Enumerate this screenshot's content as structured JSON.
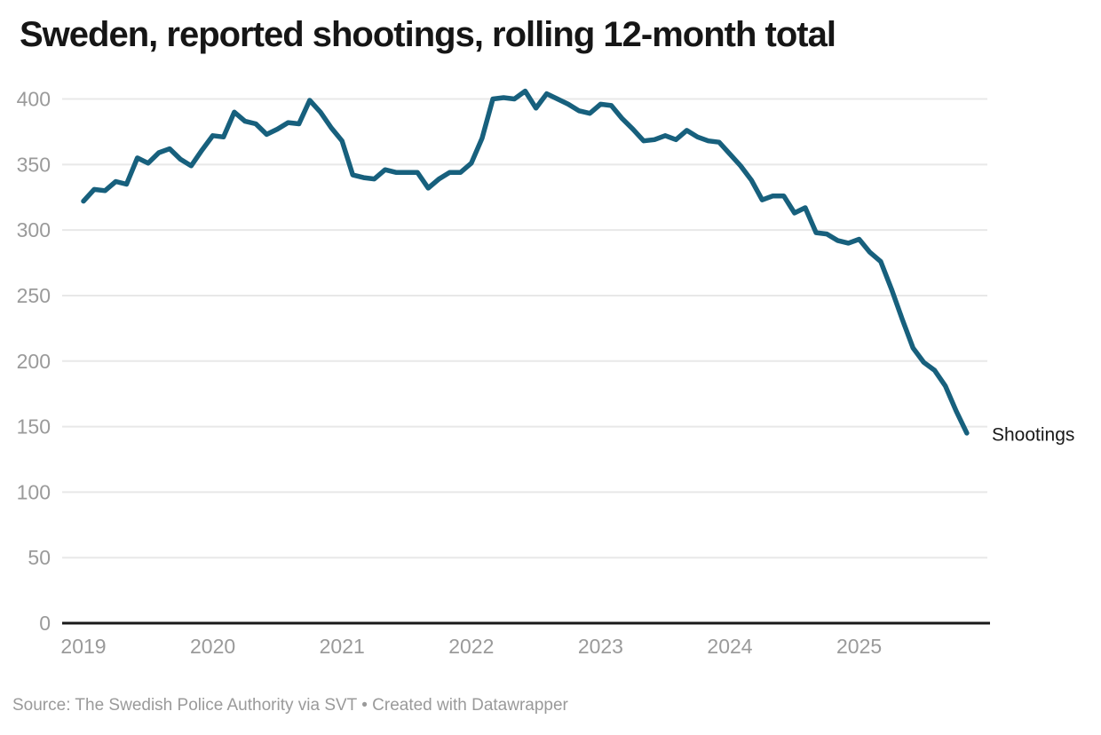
{
  "header": {
    "title": "Sweden, reported shootings, rolling 12-month total"
  },
  "chart_data": {
    "type": "line",
    "title": "Sweden, reported shootings, rolling 12-month total",
    "x_interval": "monthly",
    "x_start": "2019-01",
    "x_end": "2025-11",
    "x_tick_labels": [
      "2019",
      "2020",
      "2021",
      "2022",
      "2023",
      "2024",
      "2025"
    ],
    "y_tick_labels": [
      "0",
      "50",
      "100",
      "150",
      "200",
      "250",
      "300",
      "350",
      "400"
    ],
    "ylim": [
      0,
      400
    ],
    "grid": "horizontal",
    "legend_position": "end-of-line",
    "series": [
      {
        "name": "Shootings",
        "color": "#17607d",
        "values": [
          322,
          331,
          330,
          337,
          335,
          355,
          351,
          359,
          362,
          354,
          349,
          361,
          372,
          371,
          390,
          383,
          381,
          373,
          377,
          382,
          381,
          399,
          390,
          378,
          368,
          342,
          340,
          339,
          346,
          344,
          344,
          344,
          332,
          339,
          344,
          344,
          351,
          370,
          400,
          401,
          400,
          406,
          393,
          404,
          400,
          396,
          391,
          389,
          396,
          395,
          385,
          377,
          368,
          369,
          372,
          369,
          376,
          371,
          368,
          367,
          358,
          349,
          338,
          323,
          326,
          326,
          313,
          317,
          298,
          297,
          292,
          290,
          293,
          283,
          276,
          255,
          232,
          210,
          199,
          193,
          181,
          162,
          145
        ]
      }
    ]
  },
  "footer": {
    "source": "Source: The Swedish Police Authority via SVT • Created with Datawrapper"
  },
  "colors": {
    "background": "#ffffff",
    "title_text": "#161616",
    "axis_text": "#9a9a9a",
    "grid": "#e8e8e8",
    "axis_line": "#191919",
    "line": "#17607d",
    "series_label_text": "#191919",
    "source_text": "#9a9a9a"
  }
}
